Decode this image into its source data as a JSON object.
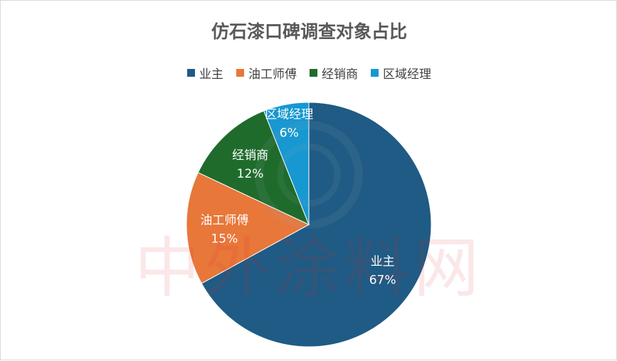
{
  "chart_data": {
    "type": "pie",
    "title": "仿石漆口碑调查对象占比",
    "legend_position": "top",
    "slices": [
      {
        "name": "业主",
        "value": 67,
        "label": "67%",
        "color": "#1f5b84"
      },
      {
        "name": "油工师傅",
        "value": 15,
        "label": "15%",
        "color": "#e8773a"
      },
      {
        "name": "经销商",
        "value": 12,
        "label": "12%",
        "color": "#1f6b2c"
      },
      {
        "name": "区域经理",
        "value": 6,
        "label": "6%",
        "color": "#1798d1"
      }
    ]
  }
}
